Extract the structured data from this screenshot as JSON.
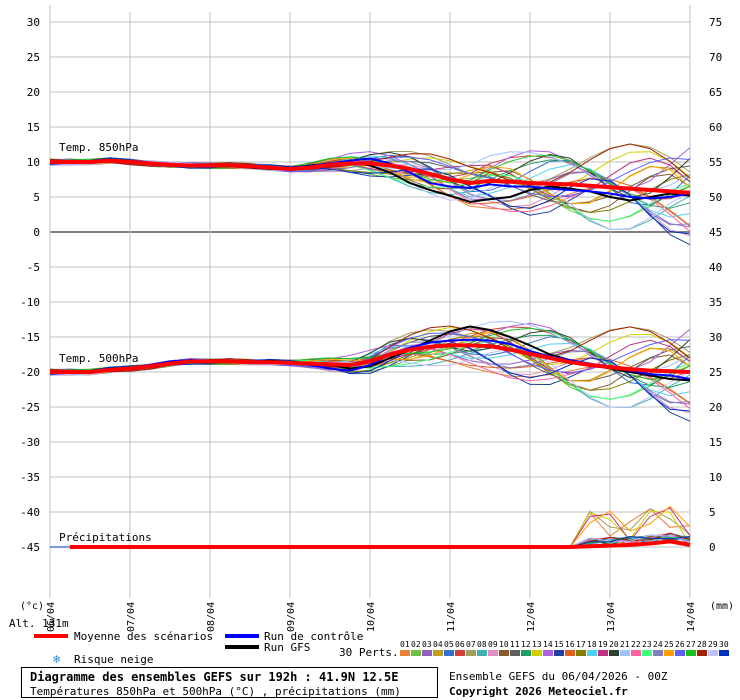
{
  "chart_data": {
    "type": "line",
    "title": "Diagramme des ensembles GEFS sur 192h : 41.9N 12.5E",
    "subtitle": "Températures 850hPa et 500hPa (°C) , précipitations (mm)",
    "run_info": "Ensemble GEFS du 06/04/2026 - 00Z",
    "copyright": "Copyright 2026 Meteociel.fr",
    "altitude_label": "Alt. 131m",
    "y_left_unit": "(°c)",
    "y_right_unit": "(mm)",
    "ylim_left": [
      -50,
      30
    ],
    "ylim_right": [
      0,
      75
    ],
    "y_left_ticks": [
      30,
      25,
      20,
      15,
      10,
      5,
      0,
      -5,
      -10,
      -15,
      -20,
      -25,
      -30,
      -35,
      -40,
      -45
    ],
    "y_right_ticks": [
      75,
      70,
      65,
      60,
      55,
      50,
      45,
      40,
      35,
      30,
      25,
      20,
      15,
      10,
      5,
      0
    ],
    "x_ticks": [
      "06/04",
      "07/04",
      "08/04",
      "09/04",
      "10/04",
      "11/04",
      "12/04",
      "13/04",
      "14/04"
    ],
    "section_labels": {
      "t850": "Temp. 850hPa",
      "t500": "Temp. 500hPa",
      "precip": "Précipitations"
    },
    "legend": {
      "mean": "Moyenne des scénarios",
      "control": "Run de contrôle",
      "gfs": "Run GFS",
      "snow": "Risque neige",
      "perts": "30 Perts.",
      "pert_numbers": [
        "01",
        "02",
        "03",
        "04",
        "05",
        "06",
        "07",
        "08",
        "09",
        "10",
        "11",
        "12",
        "13",
        "14",
        "15",
        "16",
        "17",
        "18",
        "19",
        "20",
        "21",
        "22",
        "23",
        "24",
        "25",
        "26",
        "27",
        "28",
        "29",
        "30"
      ]
    },
    "colors": {
      "mean": "#ff0000",
      "control": "#0000ff",
      "gfs": "#000000",
      "grid": "#c0c0c0",
      "perts": [
        "#e8803a",
        "#70c040",
        "#9060c0",
        "#c0a020",
        "#3070d0",
        "#d04040",
        "#a0a060",
        "#40b0b0",
        "#e090c0",
        "#8a5a2a",
        "#606060",
        "#20a060",
        "#d0d000",
        "#b060e0",
        "#2040a0",
        "#e06020",
        "#808000",
        "#50d0f0",
        "#c03080",
        "#304030",
        "#a0c0ff",
        "#ff60a0",
        "#40ff80",
        "#8080c0",
        "#ffa000",
        "#6060ff",
        "#20c020",
        "#a02000",
        "#c0c0ff",
        "#0030c0"
      ]
    },
    "x_step_hours": 6,
    "x_points": 33,
    "series": [
      {
        "key": "t850_mean",
        "name": "Moyenne des scénarios",
        "axis": "left",
        "values": [
          10,
          10,
          10,
          10.2,
          10,
          9.8,
          9.6,
          9.5,
          9.5,
          9.5,
          9.4,
          9.2,
          9,
          9.2,
          9.6,
          9.8,
          9.8,
          9.5,
          9,
          8.3,
          7.5,
          7,
          7.3,
          7.2,
          7,
          6.9,
          6.8,
          6.6,
          6.4,
          6.2,
          6,
          5.8,
          5.6
        ]
      },
      {
        "key": "t850_control",
        "name": "Run de contrôle",
        "axis": "left",
        "values": [
          10,
          10,
          10,
          10.3,
          10,
          9.8,
          9.5,
          9.5,
          9.6,
          9.5,
          9.3,
          9.2,
          9.2,
          9.4,
          9.8,
          10.2,
          10.5,
          9.8,
          8.5,
          7,
          6.5,
          6.3,
          6.8,
          6.5,
          6.5,
          6.2,
          6,
          5.8,
          5.5,
          5,
          4.8,
          5,
          5.5
        ]
      },
      {
        "key": "t850_gfs",
        "name": "Run GFS",
        "axis": "left",
        "values": [
          10,
          10,
          10,
          10.1,
          10,
          9.8,
          9.5,
          9.4,
          9.6,
          9.4,
          9.2,
          9,
          9.2,
          9.5,
          9.8,
          10,
          9.5,
          8.5,
          7,
          6,
          5.2,
          4.3,
          4.7,
          5,
          6,
          6.5,
          6.2,
          5.8,
          5,
          4.5,
          5,
          5.5,
          5.2
        ]
      },
      {
        "key": "t500_mean",
        "name": "Moyenne des scénarios",
        "axis": "left",
        "values": [
          -20,
          -20,
          -20,
          -19.7,
          -19.5,
          -19.2,
          -18.8,
          -18.5,
          -18.5,
          -18.5,
          -18.6,
          -18.6,
          -18.7,
          -18.8,
          -18.9,
          -19,
          -18.5,
          -17.5,
          -16.8,
          -16.4,
          -16.2,
          -16.2,
          -16.3,
          -16.8,
          -17.4,
          -18,
          -18.6,
          -19,
          -19.3,
          -19.6,
          -19.8,
          -19.9,
          -20
        ]
      },
      {
        "key": "t500_control",
        "name": "Run de contrôle",
        "axis": "left",
        "values": [
          -20,
          -20,
          -20,
          -19.5,
          -19.5,
          -19,
          -18.5,
          -18.3,
          -18.4,
          -18.5,
          -18.6,
          -18.5,
          -18.7,
          -19,
          -19.5,
          -19.8,
          -19,
          -17.5,
          -16.5,
          -15.8,
          -15.5,
          -15.4,
          -15.5,
          -16,
          -17,
          -17.8,
          -18.3,
          -18.8,
          -19.3,
          -19.8,
          -20.3,
          -20.5,
          -21
        ]
      },
      {
        "key": "t500_gfs",
        "name": "Run GFS",
        "axis": "left",
        "values": [
          -20,
          -20,
          -20,
          -19.7,
          -19.4,
          -19,
          -18.5,
          -18.3,
          -18.5,
          -18.6,
          -18.6,
          -18.4,
          -18.6,
          -18.8,
          -19,
          -19.5,
          -19.2,
          -18,
          -16.8,
          -15.5,
          -14.2,
          -13.5,
          -14,
          -15,
          -16.2,
          -17.5,
          -18.3,
          -19,
          -19.5,
          -20,
          -20.5,
          -21,
          -21.2
        ]
      },
      {
        "key": "precip_mean",
        "name": "Moyenne des scénarios",
        "axis": "right",
        "values": [
          0,
          0,
          0,
          0,
          0,
          0,
          0,
          0,
          0,
          0,
          0,
          0,
          0,
          0,
          0,
          0,
          0,
          0,
          0,
          0,
          0,
          0,
          0,
          0,
          0,
          0,
          0,
          0.1,
          0.2,
          0.3,
          0.5,
          0.8,
          0.3
        ]
      }
    ]
  }
}
